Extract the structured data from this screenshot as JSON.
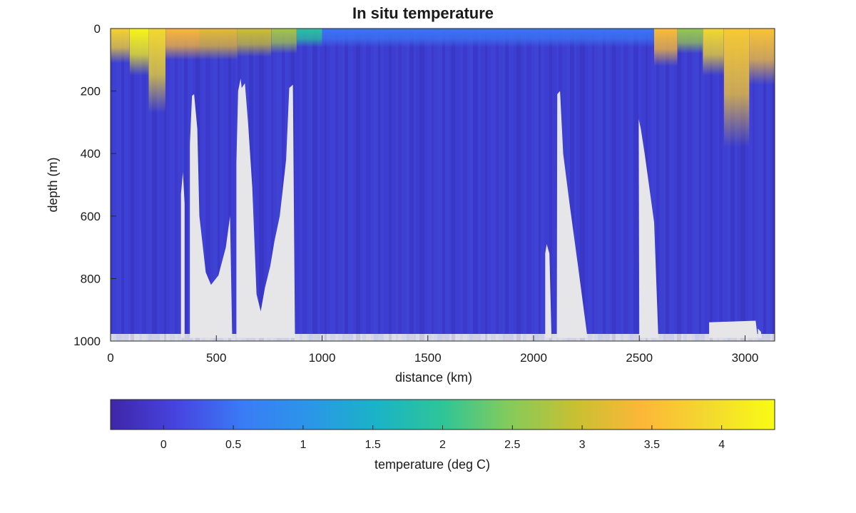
{
  "chart_data": {
    "type": "heatmap",
    "title": "In situ temperature",
    "xlabel": "distance (km)",
    "ylabel": "depth (m)",
    "xlim": [
      0,
      3140
    ],
    "ylim": [
      1000,
      0
    ],
    "xticks": [
      0,
      500,
      1000,
      1500,
      2000,
      2500,
      3000
    ],
    "yticks": [
      0,
      200,
      400,
      600,
      800,
      1000
    ],
    "colorbar": {
      "label": "temperature (deg C)",
      "range": [
        -0.38,
        4.38
      ],
      "ticks": [
        0,
        0.5,
        1,
        1.5,
        2,
        2.5,
        3,
        3.5,
        4
      ],
      "colors": [
        "#3e26a8",
        "#4744e0",
        "#3a7cf6",
        "#2b96e8",
        "#1ab3c7",
        "#2ec598",
        "#84cb5b",
        "#c8c032",
        "#fdb738",
        "#f3d92f",
        "#f9fb15"
      ]
    },
    "surface_temperature": [
      {
        "x0": 0,
        "x1": 90,
        "temp": 3.8,
        "depth": 110
      },
      {
        "x0": 90,
        "x1": 180,
        "temp": 4.3,
        "depth": 150
      },
      {
        "x0": 180,
        "x1": 260,
        "temp": 3.9,
        "depth": 270
      },
      {
        "x0": 260,
        "x1": 420,
        "temp": 3.4,
        "depth": 100
      },
      {
        "x0": 420,
        "x1": 600,
        "temp": 3.2,
        "depth": 100
      },
      {
        "x0": 600,
        "x1": 760,
        "temp": 3.0,
        "depth": 90
      },
      {
        "x0": 760,
        "x1": 880,
        "temp": 2.7,
        "depth": 80
      },
      {
        "x0": 880,
        "x1": 1000,
        "temp": 1.9,
        "depth": 60
      },
      {
        "x0": 1000,
        "x1": 2570,
        "temp": 0.5,
        "depth": 60
      },
      {
        "x0": 2570,
        "x1": 2680,
        "temp": 3.5,
        "depth": 120
      },
      {
        "x0": 2680,
        "x1": 2800,
        "temp": 2.6,
        "depth": 80
      },
      {
        "x0": 2800,
        "x1": 2900,
        "temp": 3.9,
        "depth": 150
      },
      {
        "x0": 2900,
        "x1": 3020,
        "temp": 3.7,
        "depth": 380
      },
      {
        "x0": 3020,
        "x1": 3140,
        "temp": 3.6,
        "depth": 180
      }
    ],
    "no_data_gaps": [
      {
        "name": "gap-a",
        "pts": [
          [
            333,
            990
          ],
          [
            333,
            530
          ],
          [
            342,
            460
          ],
          [
            350,
            560
          ],
          [
            350,
            990
          ]
        ]
      },
      {
        "name": "gap-b",
        "pts": [
          [
            375,
            990
          ],
          [
            375,
            370
          ],
          [
            385,
            215
          ],
          [
            395,
            210
          ],
          [
            410,
            320
          ],
          [
            420,
            600
          ],
          [
            450,
            780
          ],
          [
            475,
            820
          ],
          [
            510,
            790
          ],
          [
            545,
            700
          ],
          [
            565,
            600
          ],
          [
            575,
            990
          ]
        ]
      },
      {
        "name": "gap-c",
        "pts": [
          [
            595,
            990
          ],
          [
            595,
            430
          ],
          [
            603,
            200
          ],
          [
            615,
            160
          ],
          [
            620,
            190
          ],
          [
            635,
            175
          ],
          [
            650,
            300
          ],
          [
            670,
            510
          ],
          [
            690,
            850
          ],
          [
            710,
            905
          ],
          [
            730,
            830
          ],
          [
            755,
            760
          ],
          [
            775,
            680
          ],
          [
            800,
            600
          ],
          [
            830,
            420
          ],
          [
            845,
            190
          ],
          [
            862,
            180
          ],
          [
            872,
            990
          ]
        ]
      },
      {
        "name": "gap-d",
        "pts": [
          [
            2055,
            990
          ],
          [
            2055,
            720
          ],
          [
            2062,
            690
          ],
          [
            2075,
            720
          ],
          [
            2085,
            990
          ]
        ]
      },
      {
        "name": "gap-e",
        "pts": [
          [
            2110,
            990
          ],
          [
            2112,
            210
          ],
          [
            2125,
            200
          ],
          [
            2140,
            400
          ],
          [
            2170,
            560
          ],
          [
            2210,
            760
          ],
          [
            2255,
            990
          ]
        ]
      },
      {
        "name": "gap-f",
        "pts": [
          [
            2500,
            990
          ],
          [
            2497,
            290
          ],
          [
            2507,
            320
          ],
          [
            2525,
            400
          ],
          [
            2570,
            620
          ],
          [
            2590,
            990
          ]
        ]
      },
      {
        "name": "gap-g",
        "pts": [
          [
            2830,
            990
          ],
          [
            2830,
            940
          ],
          [
            3050,
            935
          ],
          [
            3060,
            990
          ]
        ]
      },
      {
        "name": "gap-h",
        "pts": [
          [
            3062,
            990
          ],
          [
            3060,
            960
          ],
          [
            3075,
            970
          ],
          [
            3080,
            990
          ]
        ]
      }
    ]
  }
}
